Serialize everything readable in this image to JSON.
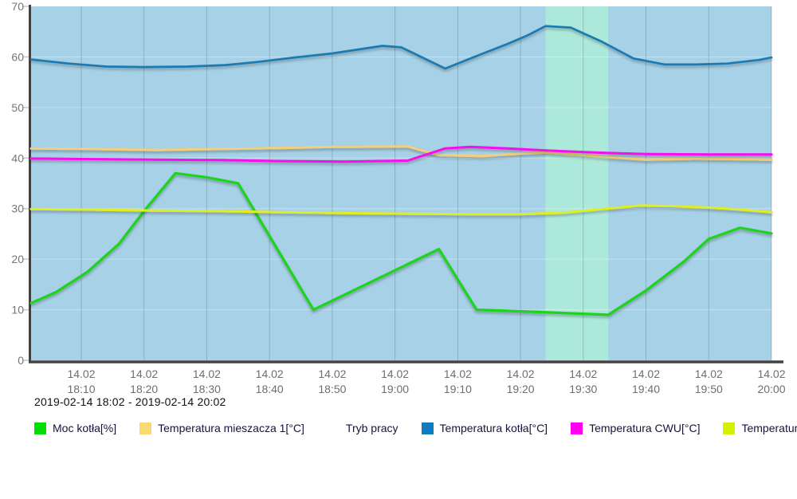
{
  "chart_data": {
    "type": "line",
    "title": "",
    "subtitle": "2019-02-14 18:02 - 2019-02-14 20:02",
    "xlabel": "",
    "ylabel": "",
    "x_range": [
      "18:02",
      "20:00"
    ],
    "ylim": [
      0,
      70
    ],
    "y_ticks": [
      0,
      10,
      20,
      30,
      40,
      50,
      60,
      70
    ],
    "x_ticks": [
      {
        "date": "14.02",
        "time": "18:10"
      },
      {
        "date": "14.02",
        "time": "18:20"
      },
      {
        "date": "14.02",
        "time": "18:30"
      },
      {
        "date": "14.02",
        "time": "18:40"
      },
      {
        "date": "14.02",
        "time": "18:50"
      },
      {
        "date": "14.02",
        "time": "19:00"
      },
      {
        "date": "14.02",
        "time": "19:10"
      },
      {
        "date": "14.02",
        "time": "19:20"
      },
      {
        "date": "14.02",
        "time": "19:30"
      },
      {
        "date": "14.02",
        "time": "19:40"
      },
      {
        "date": "14.02",
        "time": "19:50"
      },
      {
        "date": "14.02",
        "time": "20:00"
      }
    ],
    "colors": {
      "plot_background": "#a7d1e6",
      "band": "#ade9db",
      "axis": "#424242",
      "gridline": "rgba(60,85,105,0.28)"
    },
    "band": {
      "label": "Tryb pracy",
      "start": "19:24",
      "end": "19:34"
    },
    "legend": [
      {
        "label": "Moc kotła[%]",
        "color": "#00df00"
      },
      {
        "label": "Temperatura mieszacza 1[°C]",
        "color": "#f9d971"
      },
      {
        "label": "Tryb pracy",
        "color": null
      },
      {
        "label": "Temperatura kotła[°C]",
        "color": "#0e7cbe"
      },
      {
        "label": "Temperatura CWU[°C]",
        "color": "#ff00f0"
      },
      {
        "label": "Temperatura podajnika[°C]",
        "color": "#d6f000"
      }
    ],
    "series": [
      {
        "name": "Moc kotła[%]",
        "color": "#1bd41b",
        "width": 3.2,
        "points": [
          [
            "18:02",
            11.3
          ],
          [
            "18:06",
            13.5
          ],
          [
            "18:11",
            17.5
          ],
          [
            "18:16",
            23
          ],
          [
            "18:20",
            29.5
          ],
          [
            "18:25",
            37
          ],
          [
            "18:30",
            36.2
          ],
          [
            "18:35",
            35
          ],
          [
            "18:47",
            10
          ],
          [
            "19:07",
            22
          ],
          [
            "19:13",
            10
          ],
          [
            "19:22",
            9.6
          ],
          [
            "19:34",
            9
          ],
          [
            "19:40",
            13.8
          ],
          [
            "19:46",
            19.5
          ],
          [
            "19:50",
            24
          ],
          [
            "19:55",
            26.2
          ],
          [
            "20:00",
            25.1
          ]
        ]
      },
      {
        "name": "Temperatura mieszacza 1[°C]",
        "color": "#f2cf7a",
        "width": 3,
        "points": [
          [
            "18:02",
            41.9
          ],
          [
            "18:12",
            41.8
          ],
          [
            "18:22",
            41.6
          ],
          [
            "18:32",
            41.8
          ],
          [
            "18:42",
            42.0
          ],
          [
            "18:50",
            42.2
          ],
          [
            "19:02",
            42.3
          ],
          [
            "19:07",
            40.6
          ],
          [
            "19:14",
            40.4
          ],
          [
            "19:20",
            40.9
          ],
          [
            "19:24",
            41.1
          ],
          [
            "19:30",
            40.6
          ],
          [
            "19:34",
            40.2
          ],
          [
            "19:40",
            39.7
          ],
          [
            "19:48",
            39.9
          ],
          [
            "20:00",
            39.7
          ]
        ]
      },
      {
        "name": "Temperatura kotła[°C]",
        "color": "#1a79b2",
        "width": 2.7,
        "points": [
          [
            "18:02",
            59.5
          ],
          [
            "18:08",
            58.7
          ],
          [
            "18:14",
            58.1
          ],
          [
            "18:20",
            58.0
          ],
          [
            "18:27",
            58.1
          ],
          [
            "18:33",
            58.4
          ],
          [
            "18:38",
            59.0
          ],
          [
            "18:44",
            59.9
          ],
          [
            "18:50",
            60.7
          ],
          [
            "18:58",
            62.2
          ],
          [
            "19:01",
            61.9
          ],
          [
            "19:08",
            57.7
          ],
          [
            "19:13",
            60.2
          ],
          [
            "19:18",
            62.6
          ],
          [
            "19:21",
            64.2
          ],
          [
            "19:24",
            66.1
          ],
          [
            "19:28",
            65.8
          ],
          [
            "19:33",
            63.0
          ],
          [
            "19:38",
            59.7
          ],
          [
            "19:43",
            58.5
          ],
          [
            "19:48",
            58.5
          ],
          [
            "19:53",
            58.7
          ],
          [
            "19:58",
            59.4
          ],
          [
            "20:00",
            59.9
          ]
        ]
      },
      {
        "name": "Temperatura CWU[°C]",
        "color": "#f908ec",
        "width": 3,
        "points": [
          [
            "18:02",
            39.9
          ],
          [
            "18:12",
            39.8
          ],
          [
            "18:22",
            39.7
          ],
          [
            "18:32",
            39.6
          ],
          [
            "18:42",
            39.4
          ],
          [
            "18:52",
            39.3
          ],
          [
            "19:02",
            39.5
          ],
          [
            "19:08",
            41.9
          ],
          [
            "19:12",
            42.2
          ],
          [
            "19:18",
            41.9
          ],
          [
            "19:24",
            41.5
          ],
          [
            "19:30",
            41.2
          ],
          [
            "19:34",
            41.0
          ],
          [
            "19:40",
            40.8
          ],
          [
            "19:50",
            40.7
          ],
          [
            "20:00",
            40.7
          ]
        ]
      },
      {
        "name": "Temperatura podajnika[°C]",
        "color": "#dfee20",
        "width": 3,
        "points": [
          [
            "18:02",
            29.9
          ],
          [
            "18:12",
            29.8
          ],
          [
            "18:22",
            29.6
          ],
          [
            "18:32",
            29.5
          ],
          [
            "18:42",
            29.3
          ],
          [
            "18:52",
            29.1
          ],
          [
            "19:02",
            29.0
          ],
          [
            "19:12",
            28.9
          ],
          [
            "19:20",
            28.9
          ],
          [
            "19:27",
            29.2
          ],
          [
            "19:33",
            29.9
          ],
          [
            "19:39",
            30.6
          ],
          [
            "19:44",
            30.5
          ],
          [
            "19:50",
            30.2
          ],
          [
            "19:55",
            29.8
          ],
          [
            "20:00",
            29.3
          ]
        ]
      }
    ]
  }
}
